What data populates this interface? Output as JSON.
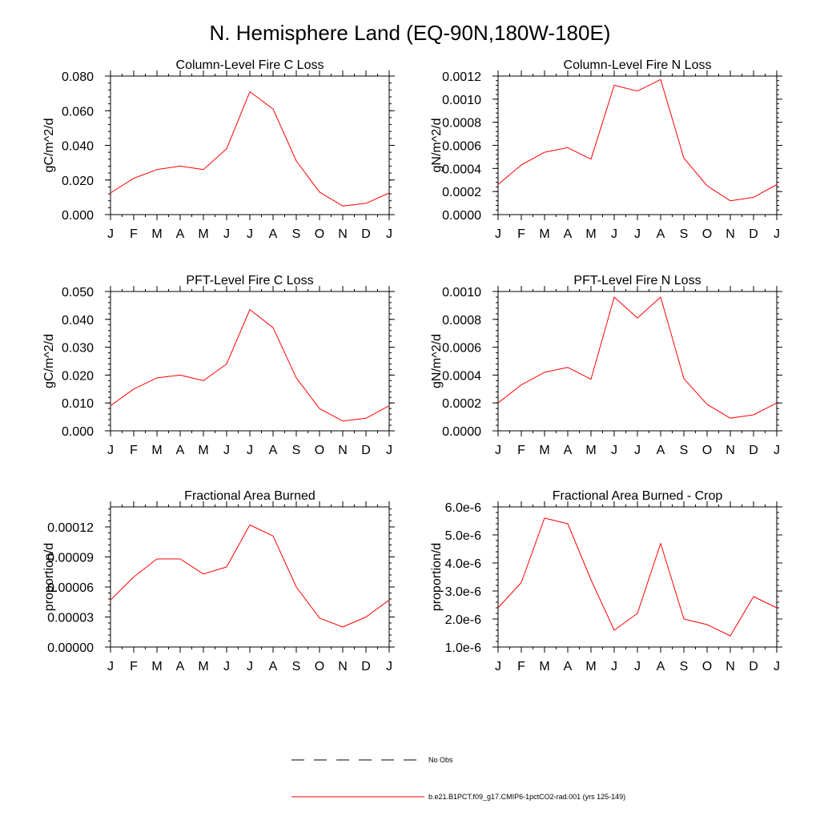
{
  "figure": {
    "title": "N. Hemisphere Land (EQ-90N,180W-180E)",
    "month_labels": [
      "J",
      "F",
      "M",
      "A",
      "M",
      "J",
      "J",
      "A",
      "S",
      "O",
      "N",
      "D",
      "J"
    ]
  },
  "legend": {
    "items": [
      {
        "label": "No Obs",
        "color": "#000000",
        "dashed": true
      },
      {
        "label": "b.e21.B1PCT.f09_g17.CMIP6-1pctCO2-rad.001 (yrs 125-149)",
        "color": "#ff0000",
        "dashed": false
      }
    ]
  },
  "chart_data": [
    {
      "type": "line",
      "title": "Column-Level Fire C Loss",
      "ylabel": "gC/m^2/d",
      "x": [
        "J",
        "F",
        "M",
        "A",
        "M",
        "J",
        "J",
        "A",
        "S",
        "O",
        "N",
        "D",
        "J"
      ],
      "ylim": [
        0,
        0.08
      ],
      "yticks": [
        "0.000",
        "0.020",
        "0.040",
        "0.060",
        "0.080"
      ],
      "series": [
        {
          "color": "#ff0000",
          "values": [
            0.0125,
            0.021,
            0.026,
            0.028,
            0.026,
            0.038,
            0.071,
            0.061,
            0.031,
            0.013,
            0.005,
            0.0065,
            0.0125
          ]
        }
      ]
    },
    {
      "type": "line",
      "title": "Column-Level Fire N Loss",
      "ylabel": "gN/m^2/d",
      "x": [
        "J",
        "F",
        "M",
        "A",
        "M",
        "J",
        "J",
        "A",
        "S",
        "O",
        "N",
        "D",
        "J"
      ],
      "ylim": [
        0,
        0.0012
      ],
      "yticks": [
        "0.0000",
        "0.0002",
        "0.0004",
        "0.0006",
        "0.0008",
        "0.0010",
        "0.0012"
      ],
      "series": [
        {
          "color": "#ff0000",
          "values": [
            0.00026,
            0.00043,
            0.00054,
            0.00058,
            0.00048,
            0.00112,
            0.00107,
            0.00117,
            0.00049,
            0.00025,
            0.00012,
            0.00015,
            0.00026
          ]
        }
      ]
    },
    {
      "type": "line",
      "title": "PFT-Level Fire C Loss",
      "ylabel": "gC/m^2/d",
      "x": [
        "J",
        "F",
        "M",
        "A",
        "M",
        "J",
        "J",
        "A",
        "S",
        "O",
        "N",
        "D",
        "J"
      ],
      "ylim": [
        0,
        0.05
      ],
      "yticks": [
        "0.000",
        "0.010",
        "0.020",
        "0.030",
        "0.040",
        "0.050"
      ],
      "series": [
        {
          "color": "#ff0000",
          "values": [
            0.009,
            0.015,
            0.019,
            0.02,
            0.018,
            0.024,
            0.0435,
            0.037,
            0.019,
            0.008,
            0.0035,
            0.0045,
            0.009
          ]
        }
      ]
    },
    {
      "type": "line",
      "title": "PFT-Level Fire N Loss",
      "ylabel": "gN/m^2/d",
      "x": [
        "J",
        "F",
        "M",
        "A",
        "M",
        "J",
        "J",
        "A",
        "S",
        "O",
        "N",
        "D",
        "J"
      ],
      "ylim": [
        0,
        0.001
      ],
      "yticks": [
        "0.0000",
        "0.0002",
        "0.0004",
        "0.0006",
        "0.0008",
        "0.0010"
      ],
      "series": [
        {
          "color": "#ff0000",
          "values": [
            0.0002,
            0.00033,
            0.00042,
            0.000455,
            0.00037,
            0.00096,
            0.00081,
            0.00096,
            0.000375,
            0.00019,
            9e-05,
            0.000115,
            0.0002
          ]
        }
      ]
    },
    {
      "type": "line",
      "title": "Fractional Area Burned",
      "ylabel": "proportion/d",
      "x": [
        "J",
        "F",
        "M",
        "A",
        "M",
        "J",
        "J",
        "A",
        "S",
        "O",
        "N",
        "D",
        "J"
      ],
      "ylim": [
        0,
        0.00014
      ],
      "yticks": [
        "0.00000",
        "0.00003",
        "0.00006",
        "0.00009",
        "0.00012"
      ],
      "series": [
        {
          "color": "#ff0000",
          "values": [
            4.7e-05,
            7e-05,
            8.8e-05,
            8.8e-05,
            7.3e-05,
            8e-05,
            0.000122,
            0.000111,
            6e-05,
            2.9e-05,
            2e-05,
            3e-05,
            4.7e-05
          ]
        }
      ]
    },
    {
      "type": "line",
      "title": "Fractional Area Burned - Crop",
      "ylabel": "proportion/d",
      "x": [
        "J",
        "F",
        "M",
        "A",
        "M",
        "J",
        "J",
        "A",
        "S",
        "O",
        "N",
        "D",
        "J"
      ],
      "ylim": [
        1e-06,
        6e-06
      ],
      "yticks": [
        "1.0e-6",
        "2.0e-6",
        "3.0e-6",
        "4.0e-6",
        "5.0e-6",
        "6.0e-6"
      ],
      "series": [
        {
          "color": "#ff0000",
          "values": [
            2.4e-06,
            3.3e-06,
            5.6e-06,
            5.4e-06,
            3.4e-06,
            1.6e-06,
            2.2e-06,
            4.7e-06,
            2e-06,
            1.8e-06,
            1.4e-06,
            2.8e-06,
            2.4e-06
          ]
        }
      ]
    }
  ]
}
